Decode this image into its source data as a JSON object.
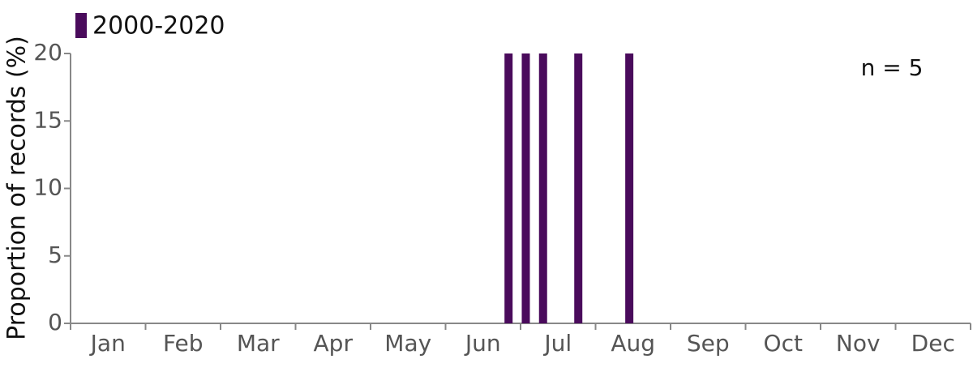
{
  "chart_data": {
    "type": "bar",
    "y_label": "Proportion of records (%)",
    "annotation": "n = 5",
    "categories": [
      "Jan",
      "Feb",
      "Mar",
      "Apr",
      "May",
      "Jun",
      "Jul",
      "Aug",
      "Sep",
      "Oct",
      "Nov",
      "Dec"
    ],
    "xlim": [
      0,
      12
    ],
    "series": [
      {
        "name": "2000-2020",
        "color": "#4a0b5c",
        "x": [
          5.84,
          6.07,
          6.3,
          6.77,
          7.45
        ],
        "values": [
          20,
          20,
          20,
          20,
          20
        ]
      }
    ],
    "ylim": [
      0,
      20
    ],
    "yticks": [
      0,
      5,
      10,
      15,
      20
    ]
  }
}
